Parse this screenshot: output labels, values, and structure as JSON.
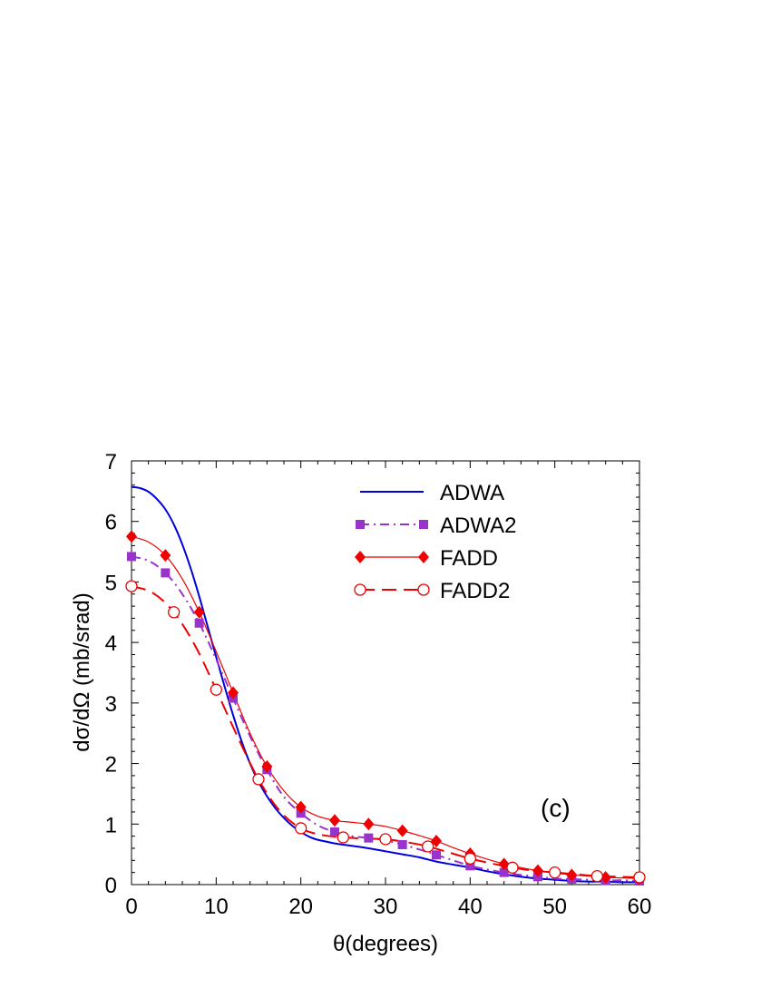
{
  "chart_data": {
    "type": "line",
    "xlabel": "θ(degrees)",
    "ylabel": "dσ/dΩ (mb/srad)",
    "xlim": [
      0,
      60
    ],
    "ylim": [
      0,
      7
    ],
    "xticks": [
      0,
      10,
      20,
      30,
      40,
      50,
      60
    ],
    "yticks": [
      0,
      1,
      2,
      3,
      4,
      5,
      6,
      7
    ],
    "xtick_labels": [
      "0",
      "10",
      "20",
      "30",
      "40",
      "50",
      "60"
    ],
    "ytick_labels": [
      "0",
      "1",
      "2",
      "3",
      "4",
      "5",
      "6",
      "7"
    ],
    "annotation": "(c)",
    "legend_position": "top-right",
    "grid": false,
    "series": [
      {
        "name": "ADWA",
        "color": "#0000dd",
        "line_style": "solid",
        "marker": "none",
        "x": [
          0,
          1,
          2,
          3,
          4,
          5,
          6,
          7,
          8,
          9,
          10,
          11,
          12,
          13,
          14,
          15,
          16,
          17,
          18,
          19,
          20,
          21,
          22,
          23,
          24,
          26,
          28,
          30,
          32,
          34,
          36,
          38,
          40,
          42,
          44,
          46,
          48,
          50,
          52,
          54,
          56,
          58,
          60
        ],
        "y": [
          6.57,
          6.55,
          6.49,
          6.37,
          6.2,
          5.95,
          5.62,
          5.22,
          4.76,
          4.26,
          3.76,
          3.27,
          2.8,
          2.37,
          2.0,
          1.7,
          1.46,
          1.26,
          1.1,
          0.97,
          0.87,
          0.79,
          0.74,
          0.71,
          0.68,
          0.64,
          0.6,
          0.55,
          0.5,
          0.45,
          0.38,
          0.33,
          0.28,
          0.22,
          0.17,
          0.13,
          0.1,
          0.08,
          0.06,
          0.05,
          0.05,
          0.04,
          0.04
        ]
      },
      {
        "name": "ADWA2",
        "color": "#9933cc",
        "line_style": "dash-dot",
        "marker": "square",
        "x": [
          0,
          2,
          4,
          6,
          8,
          10,
          12,
          14,
          16,
          18,
          20,
          22,
          24,
          26,
          28,
          30,
          32,
          34,
          36,
          38,
          40,
          42,
          44,
          46,
          48,
          50,
          52,
          54,
          56,
          58,
          60
        ],
        "y": [
          5.42,
          5.35,
          5.15,
          4.8,
          4.32,
          3.72,
          3.08,
          2.45,
          1.9,
          1.45,
          1.18,
          0.98,
          0.87,
          0.8,
          0.77,
          0.73,
          0.66,
          0.58,
          0.49,
          0.4,
          0.31,
          0.25,
          0.2,
          0.16,
          0.13,
          0.1,
          0.09,
          0.08,
          0.07,
          0.07,
          0.06
        ],
        "marker_x": [
          0,
          4,
          8,
          12,
          16,
          20,
          24,
          28,
          32,
          36,
          40,
          44,
          48,
          52,
          56,
          60
        ],
        "marker_y": [
          5.42,
          5.15,
          4.32,
          3.08,
          1.9,
          1.18,
          0.87,
          0.77,
          0.66,
          0.49,
          0.31,
          0.2,
          0.13,
          0.09,
          0.07,
          0.06
        ]
      },
      {
        "name": "FADD",
        "color": "#ee0000",
        "line_style": "solid",
        "marker": "diamond",
        "x": [
          0,
          2,
          4,
          6,
          8,
          10,
          12,
          14,
          16,
          18,
          20,
          22,
          24,
          26,
          28,
          30,
          32,
          34,
          36,
          38,
          40,
          42,
          44,
          46,
          48,
          50,
          52,
          54,
          56,
          58,
          60
        ],
        "y": [
          5.75,
          5.66,
          5.44,
          5.05,
          4.5,
          3.85,
          3.17,
          2.5,
          1.95,
          1.55,
          1.28,
          1.13,
          1.06,
          1.03,
          1.0,
          0.96,
          0.89,
          0.81,
          0.72,
          0.61,
          0.51,
          0.42,
          0.34,
          0.28,
          0.23,
          0.19,
          0.16,
          0.14,
          0.12,
          0.11,
          0.1
        ],
        "marker_x": [
          0,
          4,
          8,
          12,
          16,
          20,
          24,
          28,
          32,
          36,
          40,
          44,
          48,
          52,
          56,
          60
        ],
        "marker_y": [
          5.75,
          5.44,
          4.5,
          3.17,
          1.95,
          1.28,
          1.06,
          1.0,
          0.89,
          0.72,
          0.51,
          0.34,
          0.23,
          0.16,
          0.12,
          0.1
        ]
      },
      {
        "name": "FADD2",
        "color": "#ee0000",
        "line_style": "dashed",
        "marker": "open-circle",
        "x": [
          0,
          2.5,
          5,
          7.5,
          10,
          12.5,
          15,
          17.5,
          20,
          22.5,
          25,
          27.5,
          30,
          32.5,
          35,
          37.5,
          40,
          42.5,
          45,
          47.5,
          50,
          52.5,
          55,
          57.5,
          60
        ],
        "y": [
          4.93,
          4.82,
          4.5,
          3.95,
          3.22,
          2.45,
          1.74,
          1.22,
          0.93,
          0.82,
          0.78,
          0.76,
          0.75,
          0.7,
          0.63,
          0.53,
          0.43,
          0.35,
          0.28,
          0.23,
          0.2,
          0.17,
          0.14,
          0.13,
          0.12
        ],
        "marker_x": [
          0,
          5,
          10,
          15,
          20,
          25,
          30,
          35,
          40,
          45,
          50,
          55,
          60
        ],
        "marker_y": [
          4.93,
          4.5,
          3.22,
          1.74,
          0.93,
          0.78,
          0.75,
          0.63,
          0.43,
          0.28,
          0.2,
          0.14,
          0.12
        ]
      }
    ]
  }
}
